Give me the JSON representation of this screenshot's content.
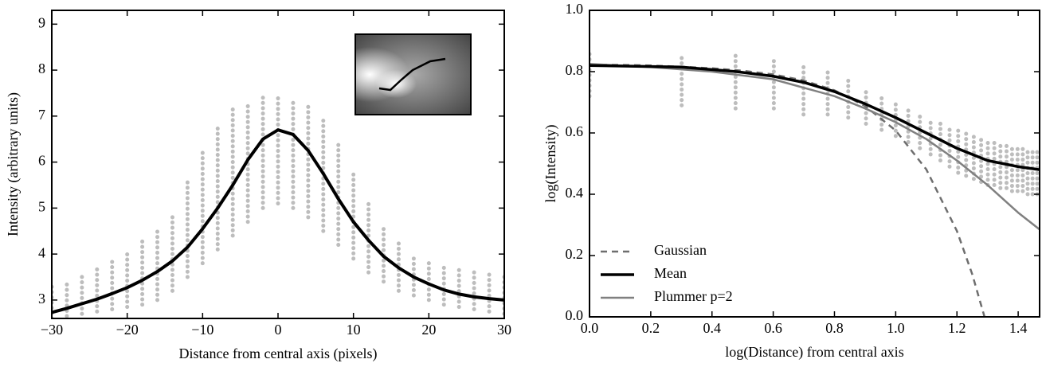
{
  "chart_data": [
    {
      "type": "line",
      "xlabel": "Distance from central axis (pixels)",
      "ylabel": "Intensity (arbitrary units)",
      "xlim": [
        -30,
        30
      ],
      "ylim": [
        2.6,
        9.3
      ],
      "xticks": [
        {
          "value": -30,
          "label": "−30"
        },
        {
          "value": -20,
          "label": "−20"
        },
        {
          "value": -10,
          "label": "−10"
        },
        0,
        10,
        20,
        30
      ],
      "yticks": [
        3,
        4,
        5,
        6,
        7,
        8,
        9
      ],
      "grid": false,
      "spread": {
        "color": "#bdbdbd",
        "x": [
          -30,
          -28,
          -26,
          -24,
          -22,
          -20,
          -18,
          -16,
          -14,
          -12,
          -10,
          -8,
          -6,
          -4,
          -2,
          0,
          2,
          4,
          6,
          8,
          10,
          12,
          14,
          16,
          18,
          20,
          22,
          24,
          26,
          28,
          30
        ],
        "low": [
          2.6,
          2.65,
          2.7,
          2.75,
          2.8,
          2.85,
          2.9,
          3.0,
          3.2,
          3.5,
          3.8,
          4.1,
          4.4,
          4.7,
          5.0,
          5.1,
          5.0,
          4.8,
          4.5,
          4.2,
          3.9,
          3.6,
          3.4,
          3.2,
          3.1,
          3.0,
          2.9,
          2.85,
          2.8,
          2.75,
          2.7
        ],
        "high": [
          3.3,
          3.4,
          3.55,
          3.7,
          3.9,
          4.1,
          4.3,
          4.5,
          4.9,
          5.6,
          6.3,
          6.8,
          7.15,
          7.25,
          7.4,
          7.4,
          7.35,
          7.2,
          6.9,
          6.4,
          5.8,
          5.1,
          4.6,
          4.3,
          4.0,
          3.85,
          3.75,
          3.7,
          3.65,
          3.6,
          3.6
        ]
      },
      "series": [
        {
          "color": "#000000",
          "linewidth": 4,
          "linestyle": "solid",
          "x": [
            -30,
            -28,
            -26,
            -24,
            -22,
            -20,
            -18,
            -16,
            -14,
            -12,
            -10,
            -8,
            -6,
            -4,
            -2,
            0,
            2,
            4,
            6,
            8,
            10,
            12,
            14,
            16,
            18,
            20,
            22,
            24,
            26,
            28,
            30
          ],
          "values": [
            2.73,
            2.82,
            2.92,
            3.02,
            3.14,
            3.27,
            3.43,
            3.62,
            3.85,
            4.15,
            4.55,
            5.0,
            5.5,
            6.05,
            6.5,
            6.7,
            6.6,
            6.25,
            5.75,
            5.2,
            4.7,
            4.3,
            3.95,
            3.7,
            3.5,
            3.35,
            3.22,
            3.13,
            3.07,
            3.03,
            3.0
          ]
        }
      ]
    },
    {
      "type": "line",
      "xlabel": "log(Distance) from central axis",
      "ylabel": "log(Intensity)",
      "xlim": [
        0,
        1.47
      ],
      "ylim": [
        0,
        1.0
      ],
      "xticks": [
        {
          "value": 0,
          "label": "0.0"
        },
        0.2,
        0.4,
        0.6,
        0.8,
        {
          "value": 1,
          "label": "1.0"
        },
        1.2,
        1.4
      ],
      "yticks": [
        {
          "value": 0,
          "label": "0.0"
        },
        0.2,
        0.4,
        0.6,
        0.8,
        {
          "value": 1,
          "label": "1.0"
        }
      ],
      "grid": false,
      "legend": "lower left",
      "spread": {
        "color": "#bdbdbd",
        "x": [
          0,
          0.301,
          0.477,
          0.602,
          0.699,
          0.778,
          0.845,
          0.903,
          0.954,
          1.0,
          1.041,
          1.079,
          1.114,
          1.146,
          1.176,
          1.204,
          1.23,
          1.255,
          1.279,
          1.301,
          1.322,
          1.342,
          1.362,
          1.38,
          1.398,
          1.415,
          1.431,
          1.447,
          1.462
        ],
        "low": [
          0.72,
          0.69,
          0.68,
          0.68,
          0.66,
          0.66,
          0.65,
          0.63,
          0.61,
          0.59,
          0.57,
          0.55,
          0.53,
          0.51,
          0.49,
          0.47,
          0.46,
          0.45,
          0.44,
          0.43,
          0.43,
          0.42,
          0.42,
          0.41,
          0.41,
          0.41,
          0.4,
          0.4,
          0.4
        ],
        "high": [
          0.87,
          0.86,
          0.855,
          0.84,
          0.82,
          0.8,
          0.78,
          0.75,
          0.72,
          0.7,
          0.68,
          0.67,
          0.65,
          0.64,
          0.62,
          0.61,
          0.6,
          0.59,
          0.58,
          0.57,
          0.57,
          0.56,
          0.56,
          0.56,
          0.56,
          0.56,
          0.55,
          0.55,
          0.55
        ]
      },
      "series": [
        {
          "name": "Gaussian",
          "color": "#6e6e6e",
          "linewidth": 2.5,
          "linestyle": "dashed",
          "x": [
            0,
            0.1,
            0.2,
            0.3,
            0.4,
            0.5,
            0.6,
            0.7,
            0.8,
            0.9,
            1.0,
            1.1,
            1.2,
            1.25,
            1.29
          ],
          "values": [
            0.823,
            0.822,
            0.82,
            0.816,
            0.811,
            0.803,
            0.791,
            0.771,
            0.739,
            0.688,
            0.608,
            0.481,
            0.28,
            0.139,
            0.0
          ]
        },
        {
          "name": "Mean",
          "color": "#000000",
          "linewidth": 3.5,
          "linestyle": "solid",
          "x": [
            0,
            0.3,
            0.48,
            0.6,
            0.7,
            0.8,
            0.9,
            1.0,
            1.1,
            1.2,
            1.3,
            1.4,
            1.47
          ],
          "values": [
            0.82,
            0.815,
            0.8,
            0.785,
            0.765,
            0.735,
            0.695,
            0.65,
            0.6,
            0.55,
            0.51,
            0.49,
            0.48
          ]
        },
        {
          "name": "Plummer p=2",
          "color": "#808080",
          "linewidth": 2.5,
          "linestyle": "solid",
          "x": [
            0,
            0.2,
            0.4,
            0.6,
            0.8,
            0.9,
            1.0,
            1.1,
            1.2,
            1.3,
            1.4,
            1.47
          ],
          "values": [
            0.825,
            0.815,
            0.8,
            0.775,
            0.72,
            0.68,
            0.635,
            0.58,
            0.51,
            0.43,
            0.34,
            0.285
          ]
        }
      ]
    }
  ]
}
